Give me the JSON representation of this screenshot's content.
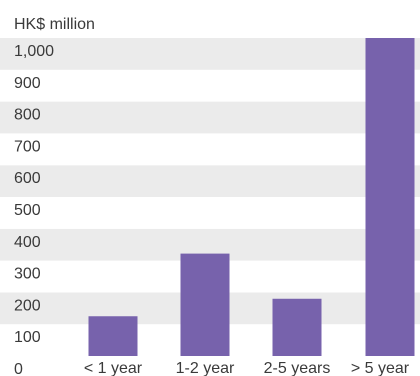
{
  "chart_data": {
    "type": "bar",
    "unit_label": "HK$ million",
    "categories": [
      "< 1 year",
      "1-2 year",
      "2-5 years",
      "> 5 year"
    ],
    "values": [
      125,
      322,
      180,
      1000
    ],
    "ylim": [
      0,
      1000
    ],
    "y_ticks": [
      "0",
      "100",
      "200",
      "300",
      "400",
      "500",
      "600",
      "700",
      "800",
      "900",
      "1,000"
    ],
    "grid": false,
    "band_colors": [
      "#ebebeb",
      "#ffffff"
    ],
    "bar_color": "#7762ac"
  }
}
